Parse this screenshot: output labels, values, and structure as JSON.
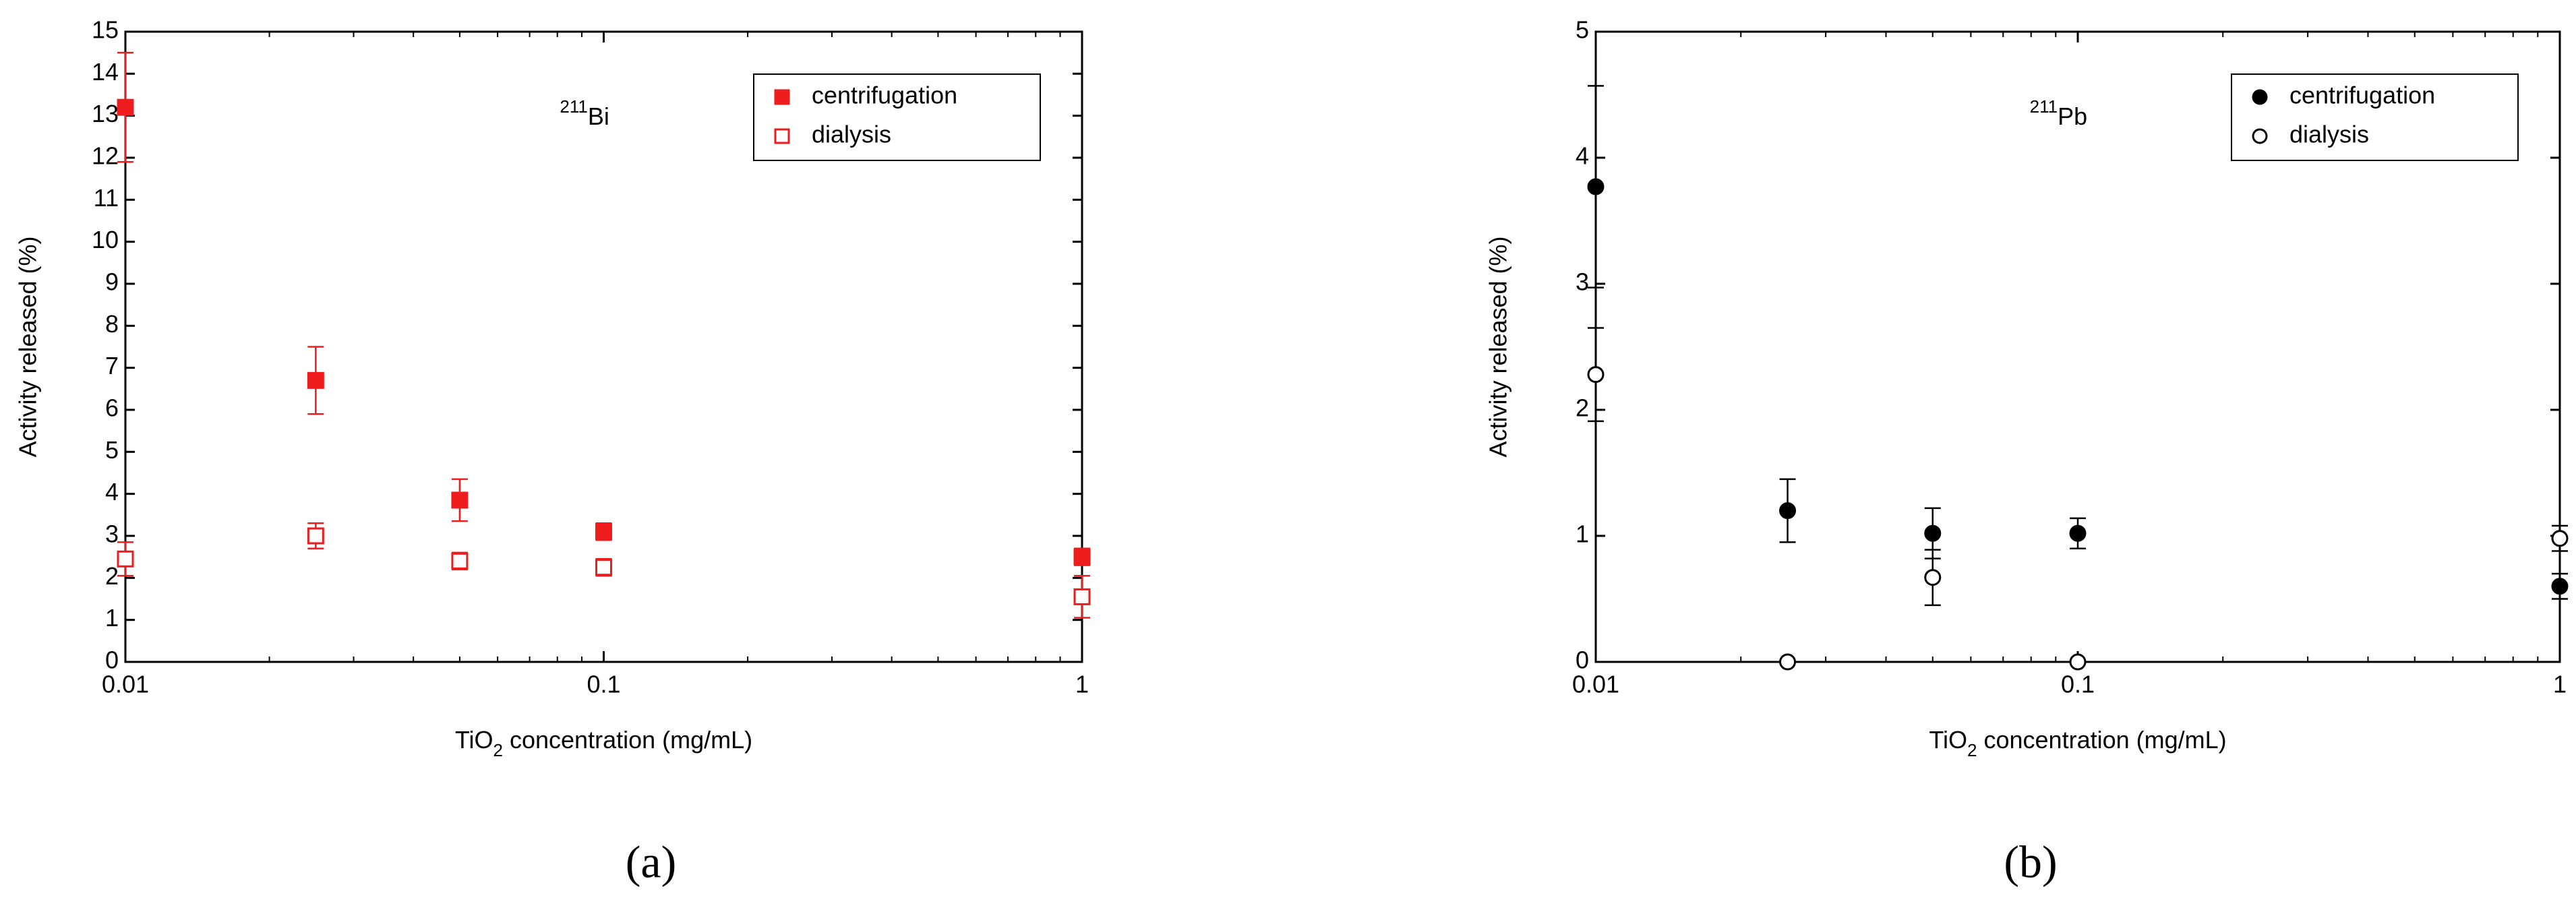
{
  "chart_data": [
    {
      "type": "scatter",
      "panel_label": "(a)",
      "annotation": {
        "mass": "211",
        "element": "Bi"
      },
      "x_label": [
        "TiO",
        "2",
        " concentration (mg/mL)"
      ],
      "y_label": "Activity released (%)",
      "x": [
        0.01,
        0.025,
        0.05,
        0.1,
        1
      ],
      "xscale": "log",
      "xlim": [
        0.01,
        1
      ],
      "xticks": [
        0.01,
        0.1,
        1
      ],
      "ylim": [
        0,
        15
      ],
      "yticks": [
        0,
        1,
        2,
        3,
        4,
        5,
        6,
        7,
        8,
        9,
        10,
        11,
        12,
        13,
        14,
        15
      ],
      "legend": "upper right",
      "series": [
        {
          "name": "centrifugation",
          "color": "#ee1c1c",
          "marker": "square",
          "filled": true,
          "values": [
            13.2,
            6.7,
            3.85,
            3.1,
            2.5
          ],
          "errors": [
            1.3,
            0.8,
            0.5,
            0.2,
            0.2
          ]
        },
        {
          "name": "dialysis",
          "color": "#ee1c1c",
          "marker": "square",
          "filled": false,
          "values": [
            2.45,
            3.0,
            2.4,
            2.25,
            1.55
          ],
          "errors": [
            0.4,
            0.3,
            0.2,
            0.2,
            0.5
          ]
        }
      ]
    },
    {
      "type": "scatter",
      "panel_label": "(b)",
      "annotation": {
        "mass": "211",
        "element": "Pb"
      },
      "x_label": [
        "TiO",
        "2",
        " concentration (mg/mL)"
      ],
      "y_label": "Activity released (%)",
      "x": [
        0.01,
        0.025,
        0.05,
        0.1,
        1
      ],
      "xscale": "log",
      "xlim": [
        0.01,
        1
      ],
      "xticks": [
        0.01,
        0.1,
        1
      ],
      "ylim": [
        0,
        5
      ],
      "yticks": [
        0,
        1,
        2,
        3,
        4,
        5
      ],
      "legend": "upper right",
      "series": [
        {
          "name": "centrifugation",
          "color": "#000000",
          "marker": "circle",
          "filled": true,
          "values": [
            3.77,
            1.2,
            1.02,
            1.02,
            0.6
          ],
          "errors": [
            0.8,
            0.25,
            0.2,
            0.12,
            0.1
          ]
        },
        {
          "name": "dialysis",
          "color": "#000000",
          "marker": "circle",
          "filled": false,
          "values": [
            2.28,
            0,
            0.67,
            0,
            0.98
          ],
          "errors": [
            0.37,
            0,
            0.22,
            0,
            0.1
          ]
        }
      ]
    }
  ]
}
